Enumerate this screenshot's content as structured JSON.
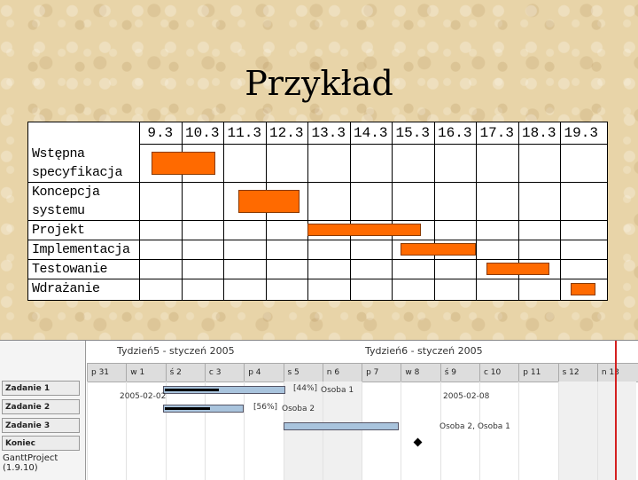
{
  "slide": {
    "title": "Przykład"
  },
  "gantt": {
    "days": [
      "9.3",
      "10.3",
      "11.3",
      "12.3",
      "13.3",
      "14.3",
      "15.3",
      "16.3",
      "17.3",
      "18.3",
      "19.3"
    ],
    "tasks": [
      {
        "lines": [
          "Wstępna",
          "specyfikacja"
        ],
        "start": 0.3,
        "end": 1.8
      },
      {
        "lines": [
          "Koncepcja",
          "systemu"
        ],
        "start": 2.35,
        "end": 3.8
      },
      {
        "lines": [
          "Projekt"
        ],
        "start": 4.0,
        "end": 6.7
      },
      {
        "lines": [
          "Implementacja"
        ],
        "start": 6.2,
        "end": 8.0
      },
      {
        "lines": [
          "Testowanie"
        ],
        "start": 8.25,
        "end": 9.75
      },
      {
        "lines": [
          "Wdrażanie"
        ],
        "start": 10.25,
        "end": 10.85
      }
    ],
    "colors": {
      "bar": "#ff6a00"
    }
  },
  "ganttproject": {
    "weeks": [
      "Tydzień5 - styczeń 2005",
      "Tydzień6 - styczeń 2005"
    ],
    "days": [
      "p 31",
      "w 1",
      "ś 2",
      "c 3",
      "p 4",
      "s 5",
      "n 6",
      "p 7",
      "w 8",
      "ś 9",
      "c 10",
      "p 11",
      "s 12",
      "n 13"
    ],
    "tasks": [
      "Zadanie 1",
      "Zadanie 2",
      "Zadanie 3",
      "Koniec"
    ],
    "footer": "GanttProject (1.9.10)",
    "labels": {
      "date1": "2005-02-02",
      "date2": "2005-02-08",
      "pct1": "[44%]",
      "pct2": "[56%]",
      "res1": "Osoba 1",
      "res2": "Osoba 2",
      "res3": "Osoba 2, Osoba 1"
    },
    "colors": {
      "bar": "#a9c4dd",
      "today": "#d42020"
    }
  }
}
